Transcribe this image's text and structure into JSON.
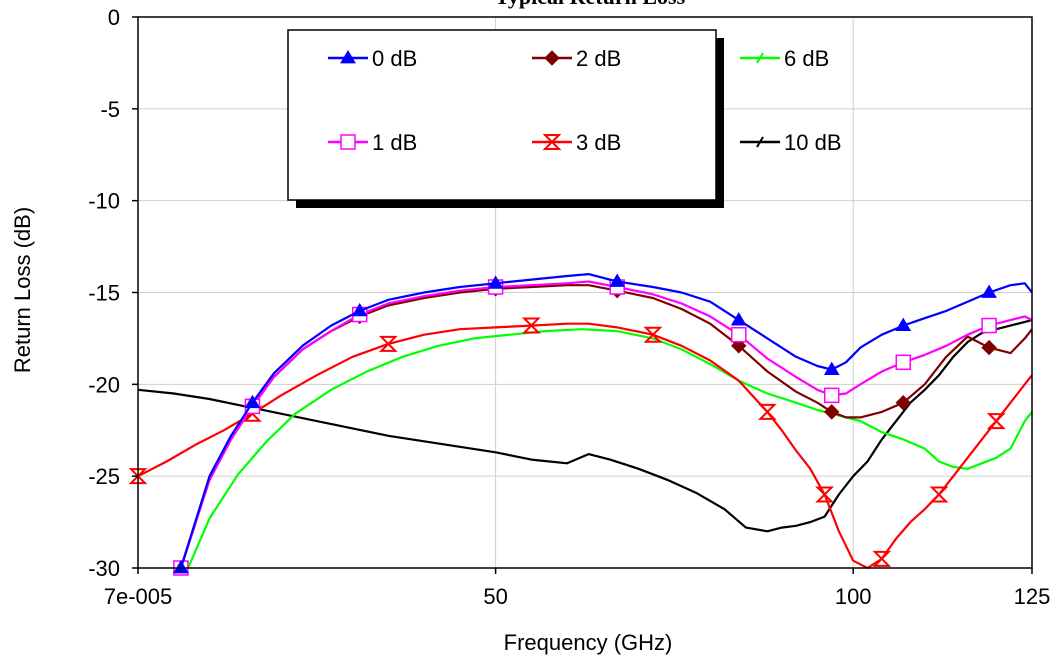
{
  "chart_data": {
    "type": "line",
    "title": "Typical Return Loss",
    "xlabel": "Frequency (GHz)",
    "ylabel": "Return Loss (dB)",
    "x_ticks": [
      "7e-005",
      "50",
      "100",
      "125"
    ],
    "x_tick_values": [
      0,
      50,
      100,
      125
    ],
    "xlim": [
      0,
      125
    ],
    "ylim": [
      -30,
      0
    ],
    "y_ticks": [
      0,
      -5,
      -10,
      -15,
      -20,
      -25,
      -30
    ],
    "y_tick_labels": [
      "0",
      "-5",
      "-10",
      "-15",
      "-20",
      "-25",
      "-30"
    ],
    "grid": true,
    "legend_position": "top-center",
    "series": [
      {
        "name": "0 dB",
        "color": "#0000ff",
        "marker": "triangle",
        "x": [
          6,
          8,
          10,
          13,
          16,
          19,
          23,
          27,
          31,
          35,
          40,
          45,
          50,
          55,
          60,
          63,
          67,
          72,
          76,
          80,
          84,
          88,
          92,
          95,
          97,
          99,
          101,
          104,
          107,
          110,
          113,
          116,
          119,
          122,
          124,
          125
        ],
        "y": [
          -30,
          -27.5,
          -25,
          -22.8,
          -21,
          -19.4,
          -17.9,
          -16.8,
          -16,
          -15.4,
          -15,
          -14.7,
          -14.5,
          -14.3,
          -14.1,
          -14,
          -14.4,
          -14.7,
          -15,
          -15.5,
          -16.5,
          -17.5,
          -18.5,
          -19,
          -19.2,
          -18.8,
          -18,
          -17.3,
          -16.8,
          -16.4,
          -16,
          -15.5,
          -15,
          -14.6,
          -14.5,
          -15
        ]
      },
      {
        "name": "1 dB",
        "color": "#ff00ff",
        "marker": "square",
        "x": [
          6,
          8,
          10,
          13,
          16,
          19,
          23,
          27,
          31,
          35,
          40,
          45,
          50,
          55,
          60,
          63,
          67,
          72,
          76,
          80,
          84,
          88,
          92,
          95,
          97,
          99,
          101,
          104,
          107,
          110,
          113,
          116,
          119,
          122,
          124,
          125
        ],
        "y": [
          -30,
          -27.6,
          -25.2,
          -23,
          -21.2,
          -19.6,
          -18.1,
          -17.1,
          -16.2,
          -15.6,
          -15.2,
          -14.9,
          -14.7,
          -14.6,
          -14.5,
          -14.4,
          -14.7,
          -15.1,
          -15.6,
          -16.3,
          -17.3,
          -18.6,
          -19.6,
          -20.3,
          -20.6,
          -20.5,
          -20,
          -19.3,
          -18.8,
          -18.4,
          -17.9,
          -17.3,
          -16.8,
          -16.5,
          -16.3,
          -16.5
        ]
      },
      {
        "name": "2 dB",
        "color": "#800000",
        "marker": "diamond",
        "x": [
          6,
          8,
          10,
          13,
          16,
          19,
          23,
          27,
          31,
          35,
          40,
          45,
          50,
          55,
          60,
          63,
          67,
          72,
          76,
          80,
          84,
          88,
          92,
          95,
          97,
          99,
          101,
          104,
          107,
          110,
          113,
          116,
          119,
          122,
          124,
          125
        ],
        "y": [
          -30,
          -27.6,
          -25.2,
          -23,
          -21.2,
          -19.6,
          -18.1,
          -17.1,
          -16.3,
          -15.7,
          -15.3,
          -15,
          -14.8,
          -14.7,
          -14.6,
          -14.6,
          -14.9,
          -15.3,
          -15.9,
          -16.7,
          -17.9,
          -19.3,
          -20.4,
          -21,
          -21.5,
          -21.8,
          -21.8,
          -21.5,
          -21,
          -20,
          -18.5,
          -17.4,
          -18,
          -18.3,
          -17.5,
          -17
        ]
      },
      {
        "name": "3 dB",
        "color": "#ff0000",
        "marker": "hourglass",
        "x": [
          0,
          4,
          8,
          12,
          16,
          20,
          25,
          30,
          35,
          40,
          45,
          50,
          55,
          60,
          63,
          67,
          72,
          76,
          80,
          84,
          88,
          90,
          92,
          94,
          96,
          98,
          100,
          102,
          104,
          106,
          108,
          110,
          112,
          114,
          116,
          118,
          120,
          122,
          124,
          125
        ],
        "y": [
          -25,
          -24.2,
          -23.3,
          -22.5,
          -21.6,
          -20.6,
          -19.5,
          -18.5,
          -17.8,
          -17.3,
          -17,
          -16.9,
          -16.8,
          -16.7,
          -16.7,
          -16.9,
          -17.3,
          -17.9,
          -18.7,
          -19.8,
          -21.5,
          -22.5,
          -23.6,
          -24.6,
          -26,
          -28,
          -29.6,
          -30,
          -29.5,
          -28.4,
          -27.5,
          -26.8,
          -26,
          -25,
          -24,
          -23,
          -22,
          -21,
          -20,
          -19.5
        ]
      },
      {
        "name": "6 dB",
        "color": "#00ff00",
        "marker": "star",
        "x": [
          7,
          10,
          14,
          18,
          22,
          27,
          32,
          37,
          42,
          47,
          52,
          57,
          62,
          67,
          72,
          76,
          80,
          84,
          88,
          92,
          95,
          98,
          101,
          104,
          107,
          110,
          112,
          114,
          116,
          118,
          120,
          122,
          124,
          125
        ],
        "y": [
          -30,
          -27.3,
          -24.9,
          -23.1,
          -21.6,
          -20.3,
          -19.3,
          -18.5,
          -17.9,
          -17.5,
          -17.3,
          -17.1,
          -17,
          -17.1,
          -17.5,
          -18.1,
          -18.9,
          -19.8,
          -20.5,
          -21,
          -21.4,
          -21.7,
          -22,
          -22.6,
          -23,
          -23.5,
          -24.2,
          -24.5,
          -24.6,
          -24.3,
          -24,
          -23.5,
          -22,
          -21.5
        ]
      },
      {
        "name": "10  dB",
        "color": "#000000",
        "marker": "star",
        "x": [
          0,
          5,
          10,
          15,
          20,
          25,
          30,
          35,
          40,
          45,
          50,
          55,
          60,
          63,
          66,
          70,
          74,
          78,
          82,
          85,
          88,
          90,
          92,
          94,
          96,
          98,
          100,
          102,
          104,
          106,
          108,
          110,
          112,
          114,
          116,
          118,
          120,
          122,
          124,
          125
        ],
        "y": [
          -20.3,
          -20.5,
          -20.8,
          -21.2,
          -21.6,
          -22,
          -22.4,
          -22.8,
          -23.1,
          -23.4,
          -23.7,
          -24.1,
          -24.3,
          -23.8,
          -24.1,
          -24.6,
          -25.2,
          -25.9,
          -26.8,
          -27.8,
          -28,
          -27.8,
          -27.7,
          -27.5,
          -27.2,
          -26,
          -25,
          -24.2,
          -23,
          -22,
          -21,
          -20.3,
          -19.5,
          -18.5,
          -17.7,
          -17.2,
          -17,
          -16.8,
          -16.6,
          -16.5
        ]
      }
    ]
  }
}
